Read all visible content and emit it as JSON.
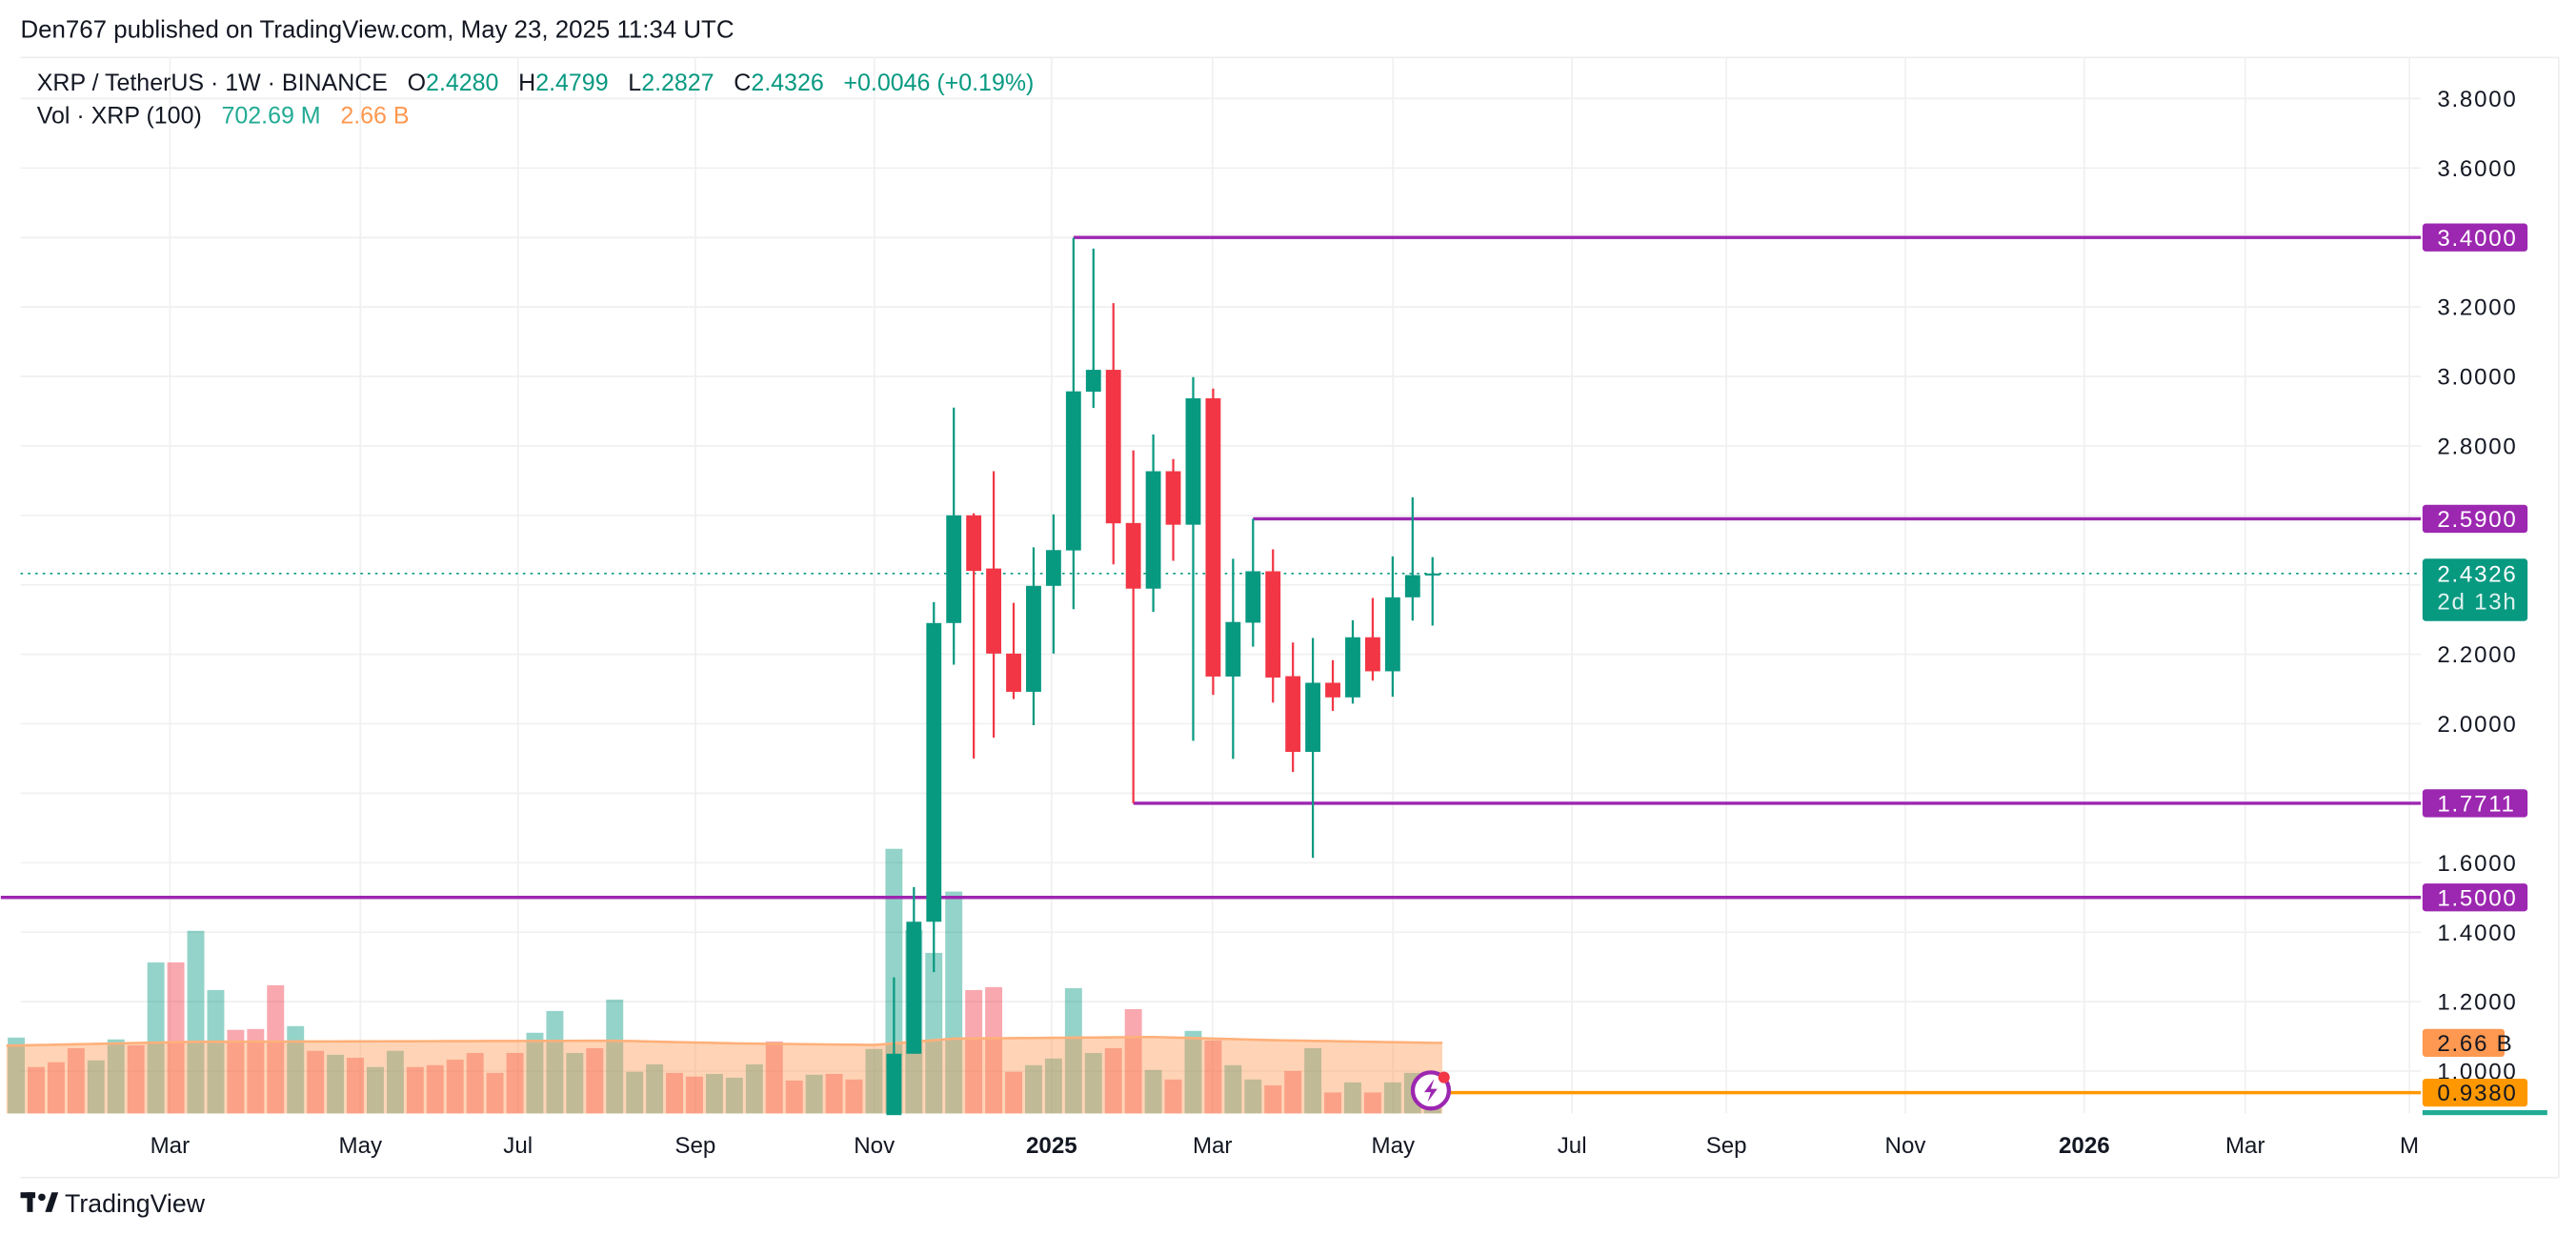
{
  "publish_line": "Den767 published on TradingView.com, May 23, 2025 11:34 UTC",
  "legend": {
    "symbol": "XRP / TetherUS · 1W · BINANCE",
    "o_label": "O",
    "o_value": "2.4280",
    "h_label": "H",
    "h_value": "2.4799",
    "l_label": "L",
    "l_value": "2.2827",
    "c_label": "C",
    "c_value": "2.4326",
    "change": "+0.0046 (+0.19%)",
    "vol_label": "Vol · XRP (100)",
    "vol_value": "702.69 M",
    "vol_ma_value": "2.66 B"
  },
  "footer": {
    "logo_text": "TradingView"
  },
  "colors": {
    "up": "#089981",
    "down": "#F23645",
    "level": "#9C27B0",
    "orange": "#FF9800",
    "vol_ma": "#FF9850"
  },
  "chart_data": {
    "type": "candlestick",
    "title": "XRP / TetherUS · 1W · BINANCE",
    "ylim": [
      0.877,
      3.89
    ],
    "y_ticks": [
      "3.8000",
      "3.6000",
      "3.2000",
      "3.0000",
      "2.8000",
      "2.2000",
      "2.0000",
      "1.6000",
      "1.4000",
      "1.2000",
      "1.0000"
    ],
    "y_tick_values": [
      3.8,
      3.6,
      3.2,
      3.0,
      2.8,
      2.2,
      2.0,
      1.6,
      1.4,
      1.2,
      1.0
    ],
    "x_ticks": [
      "Mar",
      "May",
      "Jul",
      "Sep",
      "Nov",
      "2025",
      "Mar",
      "May",
      "Jul",
      "Sep",
      "Nov",
      "2026",
      "Mar",
      "M"
    ],
    "x_tick_weeks": [
      8.3,
      16.9,
      25.6,
      34.4,
      43.2,
      52.0,
      60.5,
      69.2,
      78.0,
      86.6,
      95.3,
      104.2,
      112.6,
      121
    ],
    "grid": true,
    "candles_first_week_index": 45,
    "candles": [
      [
        0.56,
        1.27,
        0.5,
        1.05
      ],
      [
        1.05,
        1.53,
        1.05,
        1.43
      ],
      [
        1.43,
        2.35,
        1.285,
        2.29
      ],
      [
        2.29,
        2.91,
        2.17,
        2.6
      ],
      [
        2.6,
        2.606,
        1.9,
        2.44
      ],
      [
        2.447,
        2.727,
        1.96,
        2.202
      ],
      [
        2.202,
        2.348,
        2.071,
        2.092
      ],
      [
        2.092,
        2.508,
        1.996,
        2.397
      ],
      [
        2.397,
        2.603,
        2.202,
        2.5
      ],
      [
        2.499,
        3.399,
        2.33,
        2.957
      ],
      [
        2.956,
        3.368,
        2.909,
        3.019
      ],
      [
        3.019,
        3.211,
        2.459,
        2.577
      ],
      [
        2.578,
        2.787,
        1.7711,
        2.389
      ],
      [
        2.389,
        2.833,
        2.322,
        2.727
      ],
      [
        2.727,
        2.762,
        2.469,
        2.573
      ],
      [
        2.573,
        2.998,
        1.951,
        2.937
      ],
      [
        2.937,
        2.965,
        2.083,
        2.136
      ],
      [
        2.136,
        2.475,
        1.899,
        2.293
      ],
      [
        2.291,
        2.59,
        2.222,
        2.439
      ],
      [
        2.439,
        2.502,
        2.061,
        2.133
      ],
      [
        2.137,
        2.234,
        1.861,
        1.919
      ],
      [
        1.919,
        2.247,
        1.614,
        2.118
      ],
      [
        2.118,
        2.183,
        2.037,
        2.076
      ],
      [
        2.076,
        2.298,
        2.058,
        2.249
      ],
      [
        2.249,
        2.362,
        2.124,
        2.151
      ],
      [
        2.151,
        2.482,
        2.078,
        2.364
      ],
      [
        2.364,
        2.652,
        2.297,
        2.428
      ],
      [
        2.428,
        2.4799,
        2.2827,
        2.4326
      ]
    ],
    "volume_unit": "B",
    "volume": [
      [
        2.86,
        "up"
      ],
      [
        1.75,
        "down"
      ],
      [
        1.93,
        "down"
      ],
      [
        2.46,
        "down"
      ],
      [
        2.0,
        "up"
      ],
      [
        2.79,
        "up"
      ],
      [
        2.57,
        "down"
      ],
      [
        5.69,
        "up"
      ],
      [
        5.69,
        "down"
      ],
      [
        6.88,
        "up"
      ],
      [
        4.65,
        "up"
      ],
      [
        3.15,
        "down"
      ],
      [
        3.18,
        "down"
      ],
      [
        4.83,
        "down"
      ],
      [
        3.29,
        "up"
      ],
      [
        2.36,
        "down"
      ],
      [
        2.21,
        "up"
      ],
      [
        2.1,
        "down"
      ],
      [
        1.75,
        "up"
      ],
      [
        2.36,
        "up"
      ],
      [
        1.75,
        "down"
      ],
      [
        1.82,
        "down"
      ],
      [
        2.03,
        "down"
      ],
      [
        2.28,
        "down"
      ],
      [
        1.53,
        "down"
      ],
      [
        2.28,
        "down"
      ],
      [
        3.04,
        "up"
      ],
      [
        3.86,
        "up"
      ],
      [
        2.28,
        "up"
      ],
      [
        2.46,
        "down"
      ],
      [
        4.29,
        "up"
      ],
      [
        1.57,
        "up"
      ],
      [
        1.85,
        "up"
      ],
      [
        1.53,
        "down"
      ],
      [
        1.39,
        "down"
      ],
      [
        1.49,
        "up"
      ],
      [
        1.35,
        "up"
      ],
      [
        1.85,
        "up"
      ],
      [
        2.71,
        "down"
      ],
      [
        1.24,
        "down"
      ],
      [
        1.46,
        "up"
      ],
      [
        1.49,
        "down"
      ],
      [
        1.28,
        "down"
      ],
      [
        2.43,
        "up"
      ],
      [
        9.97,
        "up"
      ],
      [
        6.91,
        "up"
      ],
      [
        6.05,
        "up"
      ],
      [
        8.36,
        "up"
      ],
      [
        4.65,
        "down"
      ],
      [
        4.76,
        "down"
      ],
      [
        1.57,
        "down"
      ],
      [
        1.82,
        "up"
      ],
      [
        2.07,
        "up"
      ],
      [
        4.72,
        "up"
      ],
      [
        2.28,
        "up"
      ],
      [
        2.46,
        "down"
      ],
      [
        3.93,
        "down"
      ],
      [
        1.64,
        "up"
      ],
      [
        1.28,
        "down"
      ],
      [
        3.11,
        "up"
      ],
      [
        2.75,
        "down"
      ],
      [
        1.82,
        "up"
      ],
      [
        1.28,
        "up"
      ],
      [
        1.06,
        "down"
      ],
      [
        1.6,
        "down"
      ],
      [
        2.46,
        "up"
      ],
      [
        0.79,
        "down"
      ],
      [
        1.17,
        "up"
      ],
      [
        0.79,
        "down"
      ],
      [
        1.17,
        "up"
      ],
      [
        1.53,
        "up"
      ],
      [
        0.7,
        "up"
      ]
    ],
    "volume_ma": [
      [
        1,
        2.56
      ],
      [
        10,
        2.7
      ],
      [
        31,
        2.74
      ],
      [
        37,
        2.64
      ],
      [
        44,
        2.58
      ],
      [
        48,
        2.82
      ],
      [
        58,
        2.88
      ],
      [
        64,
        2.76
      ],
      [
        72,
        2.66
      ]
    ],
    "levels": [
      {
        "price": 3.4,
        "label": "3.4000",
        "from_week": 54
      },
      {
        "price": 2.59,
        "label": "2.5900",
        "from_week": 63
      },
      {
        "price": 1.7711,
        "label": "1.7711",
        "from_week": 57
      },
      {
        "price": 1.5,
        "label": "1.5000",
        "from_week": 0
      }
    ],
    "last_price": {
      "label": "2.4326",
      "countdown": "2d 13h",
      "value": 2.4326
    },
    "vol_ma_label": "2.66 B",
    "orange_level": {
      "price": 0.938,
      "label": "0.9380"
    }
  }
}
